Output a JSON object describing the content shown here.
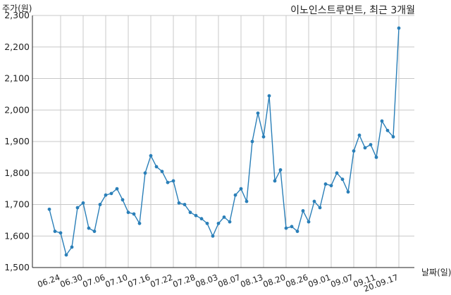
{
  "chart_data": {
    "type": "line",
    "title": "이노인스트루먼트, 최근 3개월",
    "ylabel": "주가(원)",
    "xlabel": "날짜(일)",
    "ylim": [
      1500,
      2300
    ],
    "yticks": [
      1500,
      1600,
      1700,
      1800,
      1900,
      2000,
      2100,
      2200,
      2300
    ],
    "ytick_labels": [
      "1,500",
      "1,600",
      "1,700",
      "1,800",
      "1,900",
      "2,000",
      "2,100",
      "2,200",
      "2,300"
    ],
    "grid": true,
    "line_color": "#2a7fb8",
    "series": [
      {
        "values": [
          1685,
          1615,
          1610,
          1540,
          1565,
          1690,
          1705,
          1625,
          1615,
          1700,
          1730,
          1735,
          1750,
          1715,
          1675,
          1670,
          1640,
          1800,
          1855,
          1820,
          1805,
          1770,
          1775,
          1705,
          1700,
          1675,
          1665,
          1655,
          1640,
          1600,
          1640,
          1660,
          1645,
          1730,
          1750,
          1710,
          1900,
          1990,
          1915,
          2045,
          1775,
          1810,
          1625,
          1630,
          1615,
          1680,
          1645,
          1710,
          1690,
          1765,
          1760,
          1800,
          1780,
          1740,
          1870,
          1920,
          1880,
          1890,
          1850,
          1965,
          1935,
          1915,
          2260
        ]
      }
    ],
    "xtick_labels": [
      "06.24",
      "06.30",
      "07.06",
      "07.10",
      "07.16",
      "07.22",
      "07.28",
      "08.03",
      "08.07",
      "08.13",
      "08.20",
      "08.26",
      "09.01",
      "09.07",
      "09.11",
      "20.09.17"
    ],
    "xtick_indices": [
      2,
      6,
      10,
      14,
      18,
      22,
      26,
      30,
      34,
      38,
      42,
      46,
      50,
      54,
      58,
      62
    ]
  }
}
